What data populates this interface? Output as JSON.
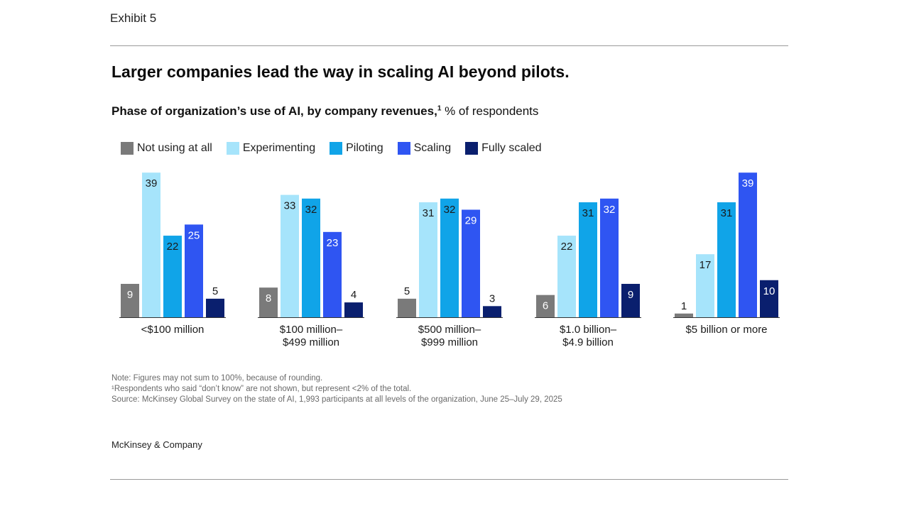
{
  "header": {
    "exhibit": "Exhibit 5"
  },
  "title": "Larger companies lead the way in scaling AI beyond pilots.",
  "subtitle": {
    "bold": "Phase of organization’s use of AI, by company revenues,",
    "sup": "1",
    "rest": " % of respondents"
  },
  "chart_data": {
    "type": "bar",
    "title": "Larger companies lead the way in scaling AI beyond pilots.",
    "ylabel": "% of respondents",
    "xlabel": "",
    "ylim": [
      0,
      40
    ],
    "legend_position": "top-left",
    "categories": [
      [
        "<$100 million"
      ],
      [
        "$100 million–",
        "$499 million"
      ],
      [
        "$500 million–",
        "$999 million"
      ],
      [
        "$1.0 billion–",
        "$4.9 billion"
      ],
      [
        "$5 billion or more"
      ]
    ],
    "series": [
      {
        "name": "Not using at all",
        "color": "#7a7a7a",
        "values": [
          9,
          8,
          5,
          6,
          1
        ]
      },
      {
        "name": "Experimenting",
        "color": "#a6e4fb",
        "values": [
          39,
          33,
          31,
          22,
          17
        ]
      },
      {
        "name": "Piloting",
        "color": "#10a4e8",
        "values": [
          22,
          32,
          32,
          31,
          31
        ]
      },
      {
        "name": "Scaling",
        "color": "#2f55f2",
        "values": [
          25,
          23,
          29,
          32,
          39
        ]
      },
      {
        "name": "Fully scaled",
        "color": "#0a1f6e",
        "values": [
          5,
          4,
          3,
          9,
          10
        ]
      }
    ]
  },
  "notes": {
    "note": "Note: Figures may not sum to 100%, because of rounding.",
    "footnote": "¹Respondents who said “don’t know” are not shown, but represent <2% of the total.",
    "source": " Source: McKinsey Global Survey on the state of AI, 1,993 participants at all levels of the organization, June 25–July 29, 2025"
  },
  "footer": {
    "brand": "McKinsey & Company"
  }
}
